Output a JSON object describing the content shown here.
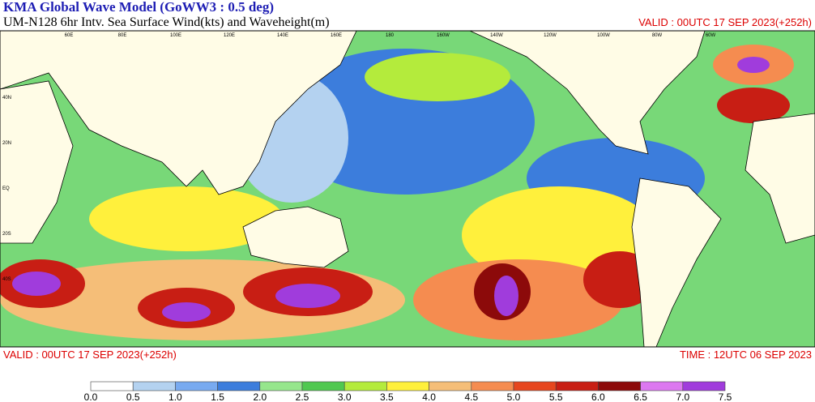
{
  "header": {
    "title": "KMA  Global Wave Model (GoWW3 : 0.5 deg)",
    "subtitle": "UM-N128  6hr Intv. Sea Surface Wind(kts) and Waveheight(m)",
    "valid": "VALID : 00UTC 17 SEP 2023(+252h)"
  },
  "map": {
    "lon_labels": [
      "60E",
      "80E",
      "100E",
      "120E",
      "140E",
      "160E",
      "180",
      "160W",
      "140W",
      "120W",
      "100W",
      "80W",
      "60W"
    ],
    "lat_labels": [
      "40N",
      "20N",
      "EQ",
      "20S",
      "40S"
    ]
  },
  "footer": {
    "valid": "VALID : 00UTC 17 SEP 2023(+252h)",
    "time": "TIME : 12UTC 06 SEP 2023"
  },
  "colorbar": {
    "ticks": [
      "0.0",
      "0.5",
      "1.0",
      "1.5",
      "2.0",
      "2.5",
      "3.0",
      "3.5",
      "4.0",
      "4.5",
      "5.0",
      "5.5",
      "6.0",
      "6.5",
      "7.0",
      "7.5"
    ],
    "colors": [
      "#ffffff",
      "#b4d2f0",
      "#78aaf0",
      "#3c7ddc",
      "#96e68c",
      "#50c850",
      "#b4eb3c",
      "#fff03c",
      "#f5be78",
      "#f58c50",
      "#e6461e",
      "#c81e14",
      "#8c0a0a",
      "#dc78f0",
      "#a03cdc"
    ]
  }
}
